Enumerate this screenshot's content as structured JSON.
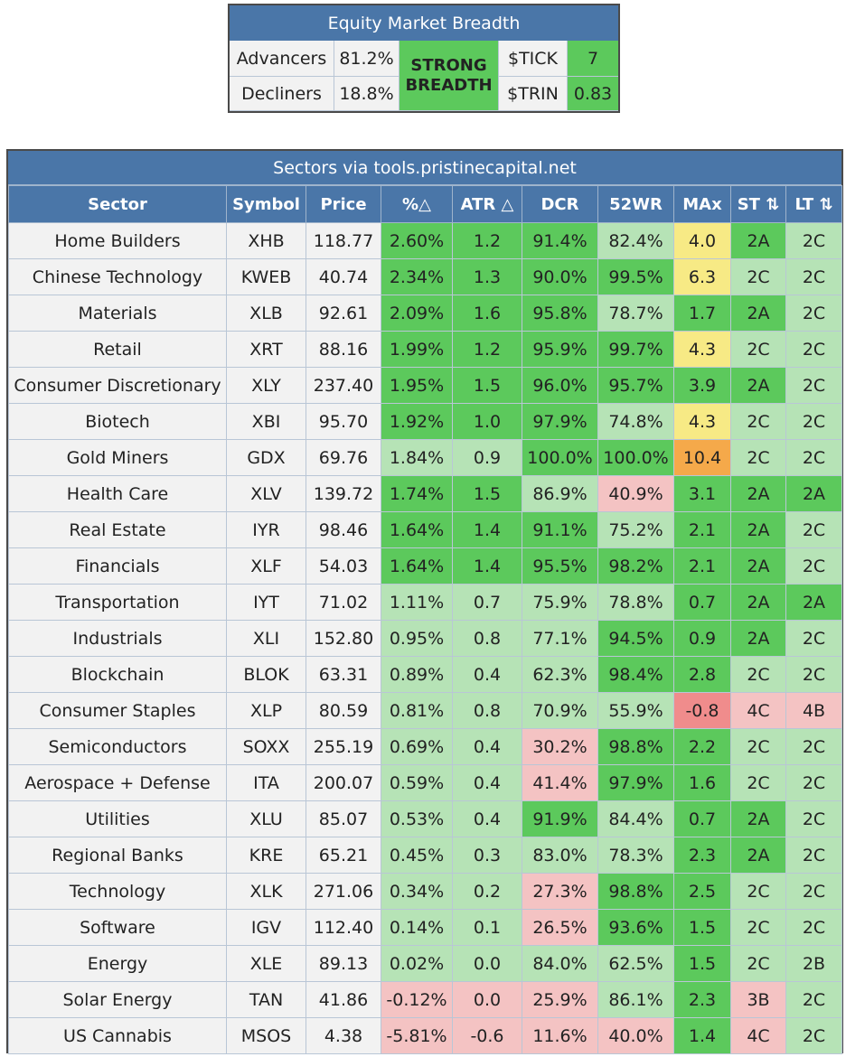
{
  "breadth": {
    "title": "Equity Market Breadth",
    "advancers_label": "Advancers",
    "advancers_value": "81.2%",
    "decliners_label": "Decliners",
    "decliners_value": "18.8%",
    "status_line1": "STRONG",
    "status_line2": "BREADTH",
    "tick_label": "$TICK",
    "tick_value": "7",
    "trin_label": "$TRIN",
    "trin_value": "0.83"
  },
  "sectors": {
    "title": "Sectors via tools.pristinecapital.net",
    "columns": [
      "Sector",
      "Symbol",
      "Price",
      "%△",
      "ATR △",
      "DCR",
      "52WR",
      "MAx",
      "ST ⇅",
      "LT ⇅"
    ],
    "rows": [
      {
        "sector": "Home Builders",
        "symbol": "XHB",
        "price": "118.77",
        "pct": "2.60%",
        "atr": "1.2",
        "dcr": "91.4%",
        "wr52": "82.4%",
        "max": "4.0",
        "st": "2A",
        "lt": "2C",
        "c": [
          "g",
          "g",
          "g",
          "lg",
          "yl"
        ]
      },
      {
        "sector": "Chinese Technology",
        "symbol": "KWEB",
        "price": "40.74",
        "pct": "2.34%",
        "atr": "1.3",
        "dcr": "90.0%",
        "wr52": "99.5%",
        "max": "6.3",
        "st": "2C",
        "lt": "2C",
        "c": [
          "g",
          "g",
          "g",
          "g",
          "yl"
        ]
      },
      {
        "sector": "Materials",
        "symbol": "XLB",
        "price": "92.61",
        "pct": "2.09%",
        "atr": "1.6",
        "dcr": "95.8%",
        "wr52": "78.7%",
        "max": "1.7",
        "st": "2A",
        "lt": "2C",
        "c": [
          "g",
          "g",
          "g",
          "lg",
          "g"
        ]
      },
      {
        "sector": "Retail",
        "symbol": "XRT",
        "price": "88.16",
        "pct": "1.99%",
        "atr": "1.2",
        "dcr": "95.9%",
        "wr52": "99.7%",
        "max": "4.3",
        "st": "2C",
        "lt": "2C",
        "c": [
          "g",
          "g",
          "g",
          "g",
          "yl"
        ]
      },
      {
        "sector": "Consumer Discretionary",
        "symbol": "XLY",
        "price": "237.40",
        "pct": "1.95%",
        "atr": "1.5",
        "dcr": "96.0%",
        "wr52": "95.7%",
        "max": "3.9",
        "st": "2A",
        "lt": "2C",
        "c": [
          "g",
          "g",
          "g",
          "g",
          "g"
        ]
      },
      {
        "sector": "Biotech",
        "symbol": "XBI",
        "price": "95.70",
        "pct": "1.92%",
        "atr": "1.0",
        "dcr": "97.9%",
        "wr52": "74.8%",
        "max": "4.3",
        "st": "2C",
        "lt": "2C",
        "c": [
          "g",
          "g",
          "g",
          "lg",
          "yl"
        ]
      },
      {
        "sector": "Gold Miners",
        "symbol": "GDX",
        "price": "69.76",
        "pct": "1.84%",
        "atr": "0.9",
        "dcr": "100.0%",
        "wr52": "100.0%",
        "max": "10.4",
        "st": "2C",
        "lt": "2C",
        "c": [
          "lg",
          "lg",
          "g",
          "g",
          "or"
        ]
      },
      {
        "sector": "Health Care",
        "symbol": "XLV",
        "price": "139.72",
        "pct": "1.74%",
        "atr": "1.5",
        "dcr": "86.9%",
        "wr52": "40.9%",
        "max": "3.1",
        "st": "2A",
        "lt": "2A",
        "c": [
          "g",
          "g",
          "lg",
          "pk",
          "g"
        ]
      },
      {
        "sector": "Real Estate",
        "symbol": "IYR",
        "price": "98.46",
        "pct": "1.64%",
        "atr": "1.4",
        "dcr": "91.1%",
        "wr52": "75.2%",
        "max": "2.1",
        "st": "2A",
        "lt": "2C",
        "c": [
          "g",
          "g",
          "g",
          "lg",
          "g"
        ]
      },
      {
        "sector": "Financials",
        "symbol": "XLF",
        "price": "54.03",
        "pct": "1.64%",
        "atr": "1.4",
        "dcr": "95.5%",
        "wr52": "98.2%",
        "max": "2.1",
        "st": "2A",
        "lt": "2C",
        "c": [
          "g",
          "g",
          "g",
          "g",
          "g"
        ]
      },
      {
        "sector": "Transportation",
        "symbol": "IYT",
        "price": "71.02",
        "pct": "1.11%",
        "atr": "0.7",
        "dcr": "75.9%",
        "wr52": "78.8%",
        "max": "0.7",
        "st": "2A",
        "lt": "2A",
        "c": [
          "lg",
          "lg",
          "lg",
          "lg",
          "g"
        ]
      },
      {
        "sector": "Industrials",
        "symbol": "XLI",
        "price": "152.80",
        "pct": "0.95%",
        "atr": "0.8",
        "dcr": "77.1%",
        "wr52": "94.5%",
        "max": "0.9",
        "st": "2A",
        "lt": "2C",
        "c": [
          "lg",
          "lg",
          "lg",
          "g",
          "g"
        ]
      },
      {
        "sector": "Blockchain",
        "symbol": "BLOK",
        "price": "63.31",
        "pct": "0.89%",
        "atr": "0.4",
        "dcr": "62.3%",
        "wr52": "98.4%",
        "max": "2.8",
        "st": "2C",
        "lt": "2C",
        "c": [
          "lg",
          "lg",
          "lg",
          "g",
          "g"
        ]
      },
      {
        "sector": "Consumer Staples",
        "symbol": "XLP",
        "price": "80.59",
        "pct": "0.81%",
        "atr": "0.8",
        "dcr": "70.9%",
        "wr52": "55.9%",
        "max": "-0.8",
        "st": "4C",
        "lt": "4B",
        "c": [
          "lg",
          "lg",
          "lg",
          "lg",
          "rd"
        ]
      },
      {
        "sector": "Semiconductors",
        "symbol": "SOXX",
        "price": "255.19",
        "pct": "0.69%",
        "atr": "0.4",
        "dcr": "30.2%",
        "wr52": "98.8%",
        "max": "2.2",
        "st": "2C",
        "lt": "2C",
        "c": [
          "lg",
          "lg",
          "pk",
          "g",
          "g"
        ]
      },
      {
        "sector": "Aerospace + Defense",
        "symbol": "ITA",
        "price": "200.07",
        "pct": "0.59%",
        "atr": "0.4",
        "dcr": "41.4%",
        "wr52": "97.9%",
        "max": "1.6",
        "st": "2C",
        "lt": "2C",
        "c": [
          "lg",
          "lg",
          "pk",
          "g",
          "g"
        ]
      },
      {
        "sector": "Utilities",
        "symbol": "XLU",
        "price": "85.07",
        "pct": "0.53%",
        "atr": "0.4",
        "dcr": "91.9%",
        "wr52": "84.4%",
        "max": "0.7",
        "st": "2A",
        "lt": "2C",
        "c": [
          "lg",
          "lg",
          "g",
          "lg",
          "g"
        ]
      },
      {
        "sector": "Regional Banks",
        "symbol": "KRE",
        "price": "65.21",
        "pct": "0.45%",
        "atr": "0.3",
        "dcr": "83.0%",
        "wr52": "78.3%",
        "max": "2.3",
        "st": "2A",
        "lt": "2C",
        "c": [
          "lg",
          "lg",
          "lg",
          "lg",
          "g"
        ]
      },
      {
        "sector": "Technology",
        "symbol": "XLK",
        "price": "271.06",
        "pct": "0.34%",
        "atr": "0.2",
        "dcr": "27.3%",
        "wr52": "98.8%",
        "max": "2.5",
        "st": "2C",
        "lt": "2C",
        "c": [
          "lg",
          "lg",
          "pk",
          "g",
          "g"
        ]
      },
      {
        "sector": "Software",
        "symbol": "IGV",
        "price": "112.40",
        "pct": "0.14%",
        "atr": "0.1",
        "dcr": "26.5%",
        "wr52": "93.6%",
        "max": "1.5",
        "st": "2C",
        "lt": "2C",
        "c": [
          "lg",
          "lg",
          "pk",
          "g",
          "g"
        ]
      },
      {
        "sector": "Energy",
        "symbol": "XLE",
        "price": "89.13",
        "pct": "0.02%",
        "atr": "0.0",
        "dcr": "84.0%",
        "wr52": "62.5%",
        "max": "1.5",
        "st": "2C",
        "lt": "2B",
        "c": [
          "lg",
          "lg",
          "lg",
          "lg",
          "g"
        ]
      },
      {
        "sector": "Solar Energy",
        "symbol": "TAN",
        "price": "41.86",
        "pct": "-0.12%",
        "atr": "0.0",
        "dcr": "25.9%",
        "wr52": "86.1%",
        "max": "2.3",
        "st": "3B",
        "lt": "2C",
        "c": [
          "pk",
          "pk",
          "pk",
          "lg",
          "g"
        ]
      },
      {
        "sector": "US Cannabis",
        "symbol": "MSOS",
        "price": "4.38",
        "pct": "-5.81%",
        "atr": "-0.6",
        "dcr": "11.6%",
        "wr52": "40.0%",
        "max": "1.4",
        "st": "4C",
        "lt": "2C",
        "c": [
          "pk",
          "pk",
          "pk",
          "pk",
          "g"
        ]
      }
    ]
  },
  "colors": {
    "header_blue": "#4a76a8",
    "strong_green": "#5cc95c",
    "light_green": "#b6e3b6",
    "pink": "#f4c3c3",
    "red": "#f08c8c",
    "yellow": "#f7ea85",
    "orange": "#f5a94a",
    "grey": "#f2f2f2"
  }
}
